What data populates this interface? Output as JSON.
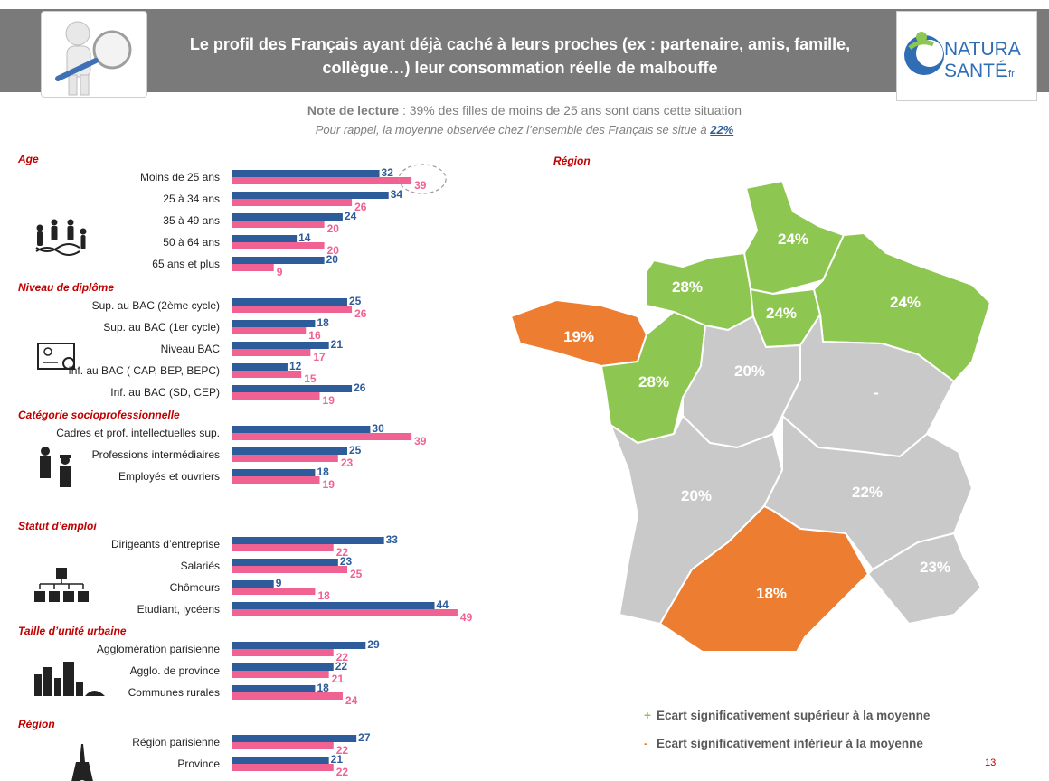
{
  "header": {
    "title_line1": "Le profil des Français ayant déjà caché à leurs proches (ex : partenaire, amis, famille,",
    "title_line2": "collègue…) leur consommation réelle de malbouffe",
    "logo_line1": "NATURA",
    "logo_line2": "SANTÉ",
    "logo_suffix": ".fr"
  },
  "note": {
    "label": "Note de lecture",
    "text": " : 39% des filles de moins de 25 ans sont dans cette situation",
    "reminder": "Pour rappel, la moyenne observée chez l’ensemble des Français se situe à ",
    "average": "22%"
  },
  "colors": {
    "blue": "#2e5c9a",
    "pink": "#f06292",
    "green": "#8dc751",
    "orange": "#ed7d31",
    "grey": "#c9c9c9",
    "section": "#c00000"
  },
  "chart_data": {
    "type": "bar",
    "orientation": "horizontal",
    "series_names": [
      "blue",
      "pink"
    ],
    "groups": [
      {
        "title": "Age",
        "icon": "family-dna-icon",
        "rows": [
          {
            "label": "Moins de 25 ans",
            "blue": 32,
            "pink": 39,
            "highlight": true
          },
          {
            "label": "25 à 34 ans",
            "blue": 34,
            "pink": 26
          },
          {
            "label": "35 à 49 ans",
            "blue": 24,
            "pink": 20
          },
          {
            "label": "50 à 64 ans",
            "blue": 14,
            "pink": 20
          },
          {
            "label": "65 ans et plus",
            "blue": 20,
            "pink": 9
          }
        ]
      },
      {
        "title": "Niveau de diplôme",
        "icon": "diploma-icon",
        "rows": [
          {
            "label": "Sup. au BAC (2ème cycle)",
            "blue": 25,
            "pink": 26
          },
          {
            "label": "Sup. au BAC (1er  cycle)",
            "blue": 18,
            "pink": 16
          },
          {
            "label": "Niveau BAC",
            "blue": 21,
            "pink": 17
          },
          {
            "label": "Inf. au BAC ( CAP, BEP, BEPC)",
            "blue": 12,
            "pink": 15
          },
          {
            "label": "Inf. au BAC (SD, CEP)",
            "blue": 26,
            "pink": 19
          }
        ]
      },
      {
        "title": "Catégorie socioprofessionnelle",
        "icon": "workers-icon",
        "rows": [
          {
            "label": "Cadres et prof. intellectuelles sup.",
            "blue": 30,
            "pink": 39
          },
          {
            "label": "Professions intermédiaires",
            "blue": 25,
            "pink": 23
          },
          {
            "label": "Employés et ouvriers",
            "blue": 18,
            "pink": 19
          }
        ]
      },
      {
        "title": "Statut d’emploi",
        "icon": "org-chart-icon",
        "rows": [
          {
            "label": "Dirigeants d’entreprise",
            "blue": 33,
            "pink": 22
          },
          {
            "label": "Salariés",
            "blue": 23,
            "pink": 25
          },
          {
            "label": "Chômeurs",
            "blue": 9,
            "pink": 18
          },
          {
            "label": "Etudiant, lycéens",
            "blue": 44,
            "pink": 49
          }
        ]
      },
      {
        "title": "Taille d’unité urbaine",
        "icon": "city-icon",
        "rows": [
          {
            "label": "Agglomération parisienne",
            "blue": 29,
            "pink": 22
          },
          {
            "label": "Agglo. de province",
            "blue": 22,
            "pink": 21
          },
          {
            "label": "Communes rurales",
            "blue": 18,
            "pink": 24
          }
        ]
      },
      {
        "title": "Région",
        "icon": "eiffel-tower-icon",
        "rows": [
          {
            "label": "Région parisienne",
            "blue": 27,
            "pink": 22
          },
          {
            "label": "Province",
            "blue": 21,
            "pink": 22
          }
        ]
      }
    ]
  },
  "map": {
    "title": "Région",
    "regions": [
      {
        "name": "hauts-de-france",
        "value": "24%",
        "status": "above"
      },
      {
        "name": "normandie",
        "value": "28%",
        "status": "above"
      },
      {
        "name": "ile-de-france",
        "value": "24%",
        "status": "above"
      },
      {
        "name": "grand-est",
        "value": "24%",
        "status": "above"
      },
      {
        "name": "bretagne",
        "value": "19%",
        "status": "below"
      },
      {
        "name": "pays-de-la-loire",
        "value": "28%",
        "status": "above"
      },
      {
        "name": "centre-val-de-loire",
        "value": "20%",
        "status": "neutral"
      },
      {
        "name": "bourgogne-franche-comte",
        "value": "-",
        "status": "neutral"
      },
      {
        "name": "nouvelle-aquitaine",
        "value": "20%",
        "status": "neutral"
      },
      {
        "name": "auvergne-rhone-alpes",
        "value": "22%",
        "status": "neutral"
      },
      {
        "name": "occitanie",
        "value": "18%",
        "status": "below"
      },
      {
        "name": "provence-alpes-cote-azur",
        "value": "23%",
        "status": "neutral"
      }
    ]
  },
  "legend": {
    "above_mark": "+",
    "above_text": "Ecart significativement supérieur à la moyenne",
    "below_mark": "-",
    "below_text": "Ecart significativement inférieur à la moyenne"
  },
  "page_number": "13"
}
